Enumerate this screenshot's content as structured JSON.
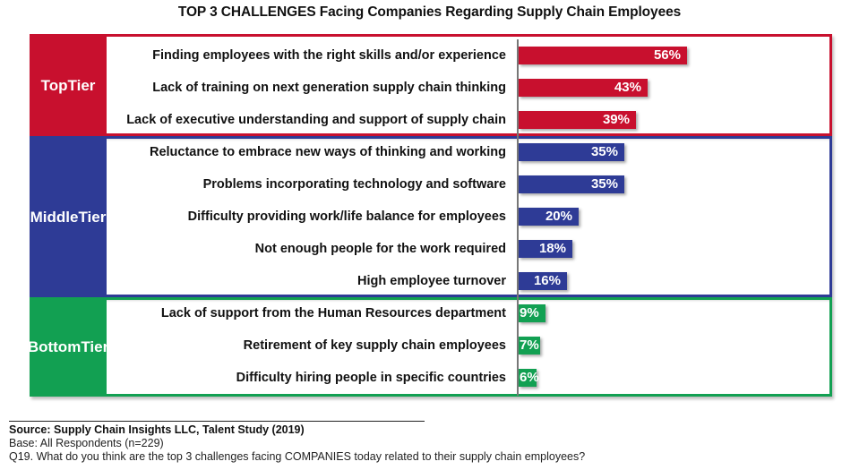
{
  "chart_data": {
    "type": "bar",
    "orientation": "horizontal",
    "title": "TOP 3 CHALLENGES Facing Companies Regarding Supply Chain Employees",
    "xlabel": "",
    "ylabel": "",
    "xlim": [
      0,
      100
    ],
    "unit": "%",
    "tiers": [
      {
        "label_line1": "Top",
        "label_line2": "Tier",
        "color": "#C8102E",
        "items": [
          {
            "category": "Finding employees with the right skills and/or experience",
            "value": 56,
            "label": "56%"
          },
          {
            "category": "Lack of training on next generation supply chain thinking",
            "value": 43,
            "label": "43%"
          },
          {
            "category": "Lack of executive understanding and support of supply chain",
            "value": 39,
            "label": "39%"
          }
        ]
      },
      {
        "label_line1": "Middle",
        "label_line2": "Tier",
        "color": "#2E3B96",
        "items": [
          {
            "category": "Reluctance to embrace new ways of thinking and working",
            "value": 35,
            "label": "35%"
          },
          {
            "category": "Problems incorporating technology and software",
            "value": 35,
            "label": "35%"
          },
          {
            "category": "Difficulty providing work/life balance for employees",
            "value": 20,
            "label": "20%"
          },
          {
            "category": "Not enough people for the work required",
            "value": 18,
            "label": "18%"
          },
          {
            "category": "High employee turnover",
            "value": 16,
            "label": "16%"
          }
        ]
      },
      {
        "label_line1": "Bottom",
        "label_line2": "Tier",
        "color": "#12A052",
        "items": [
          {
            "category": "Lack of support from the Human Resources department",
            "value": 9,
            "label": "9%"
          },
          {
            "category": "Retirement of key supply chain employees",
            "value": 7,
            "label": "7%"
          },
          {
            "category": "Difficulty hiring people in specific countries",
            "value": 6,
            "label": "6%"
          }
        ]
      }
    ]
  },
  "footer": {
    "source": "Source:  Supply Chain Insights LLC, Talent Study (2019)",
    "base": "Base: All Respondents (n=229)",
    "question": "Q19. What do you think are the top 3 challenges facing COMPANIES today related to their supply chain employees?"
  }
}
